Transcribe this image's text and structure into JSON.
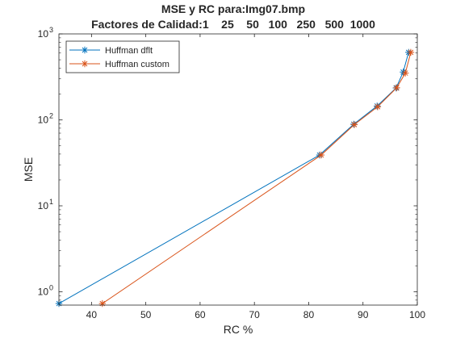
{
  "chart_data": {
    "type": "line",
    "title": "MSE y RC para:Img07.bmp",
    "subtitle": "Factores de Calidad:1    25    50   100   250   500  1000",
    "xlabel": "RC %",
    "ylabel": "MSE",
    "xlim": [
      34,
      100
    ],
    "ylim": [
      0.7,
      1000
    ],
    "yscale": "log",
    "xticks": [
      40,
      50,
      60,
      70,
      80,
      90,
      100
    ],
    "yticks": [
      {
        "value": 1,
        "base": "10",
        "exp": "0"
      },
      {
        "value": 10,
        "base": "10",
        "exp": "1"
      },
      {
        "value": 100,
        "base": "10",
        "exp": "2"
      },
      {
        "value": 1000,
        "base": "10",
        "exp": "3"
      }
    ],
    "grid": false,
    "legend_position": "top-left",
    "marker": "asterisk",
    "series": [
      {
        "name": "Huffman dflt",
        "color": "#0072BD",
        "x": [
          34.0,
          82.0,
          88.3,
          92.6,
          96.1,
          97.4,
          98.4
        ],
        "y": [
          0.73,
          39,
          89,
          145,
          235,
          360,
          610
        ]
      },
      {
        "name": "Huffman custom",
        "color": "#D95319",
        "x": [
          42.0,
          82.3,
          88.4,
          92.7,
          96.2,
          97.8,
          98.8
        ],
        "y": [
          0.73,
          39,
          88,
          142,
          236,
          350,
          610
        ]
      }
    ]
  }
}
